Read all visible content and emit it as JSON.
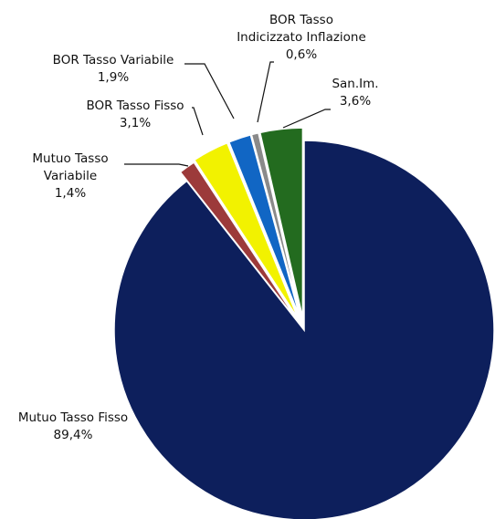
{
  "chart_data": {
    "type": "pie",
    "title": "",
    "slices": [
      {
        "label_lines": [
          "Mutuo Tasso Fisso"
        ],
        "value_label": "89,4%",
        "value": 89.4,
        "color": "#0d1f5c"
      },
      {
        "label_lines": [
          "Mutuo Tasso",
          "Variabile"
        ],
        "value_label": "1,4%",
        "value": 1.4,
        "color": "#9c3a3a"
      },
      {
        "label_lines": [
          "BOR Tasso Fisso"
        ],
        "value_label": "3,1%",
        "value": 3.1,
        "color": "#f2f200"
      },
      {
        "label_lines": [
          "BOR Tasso Variabile"
        ],
        "value_label": "1,9%",
        "value": 1.9,
        "color": "#1166c4"
      },
      {
        "label_lines": [
          "BOR Tasso",
          "Indicizzato Inflazione"
        ],
        "value_label": "0,6%",
        "value": 0.6,
        "color": "#8a8a8a"
      },
      {
        "label_lines": [
          "San.Im."
        ],
        "value_label": "3,6%",
        "value": 3.6,
        "color": "#236b1f"
      }
    ]
  }
}
